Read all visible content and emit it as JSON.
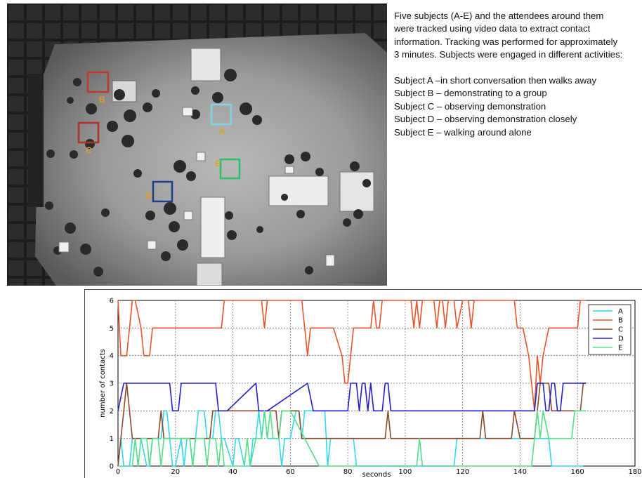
{
  "photo": {
    "boxes": [
      {
        "label": "A",
        "color": "#7fd4e6"
      },
      {
        "label": "B",
        "color": "#c0392b"
      },
      {
        "label": "C",
        "color": "#b0302a"
      },
      {
        "label": "D",
        "color": "#1f3f8f"
      },
      {
        "label": "E",
        "color": "#2ec16a"
      }
    ],
    "label_color": "#e0a020"
  },
  "description": {
    "lines": [
      "Five subjects (A-E) and the attendees around them",
      "were tracked using video data to extract contact",
      "information. Tracking was performed for approximately",
      "3 minutes. Subjects were engaged in different activities:"
    ],
    "subjects": [
      "Subject A –in short conversation then walks away",
      "Subject B – demonstrating to a group",
      "Subject C – observing demonstration",
      "Subject D – observing demonstration closely",
      "Subject E – walking around alone"
    ]
  },
  "chart_data": {
    "type": "line",
    "title": "",
    "xlabel": "seconds",
    "ylabel": "number of contacts",
    "xlim": [
      0,
      180
    ],
    "ylim": [
      0,
      6
    ],
    "xticks": [
      0,
      20,
      40,
      60,
      80,
      100,
      120,
      140,
      160,
      180
    ],
    "yticks": [
      0,
      1,
      2,
      3,
      4,
      5,
      6
    ],
    "grid": true,
    "legend_position": "top-right",
    "series": [
      {
        "name": "A",
        "color": "#33d6f0",
        "x": [
          0,
          1,
          2,
          3,
          4,
          5,
          8,
          10,
          11,
          12,
          15,
          16,
          17,
          18,
          19,
          20,
          22,
          23,
          24,
          25,
          26,
          27,
          28,
          30,
          31,
          33,
          34,
          35,
          36,
          37,
          40,
          41,
          42,
          44,
          46,
          47,
          48,
          49,
          50,
          51,
          52,
          56,
          57,
          58,
          60,
          62,
          63,
          64,
          65,
          66,
          70,
          72,
          73,
          74,
          75,
          80,
          82,
          83,
          87,
          90,
          95,
          100,
          105,
          110,
          115,
          117,
          118,
          120,
          125,
          130,
          135,
          137,
          138,
          140,
          141,
          145,
          147,
          148,
          150,
          151,
          152,
          155,
          160,
          162
        ],
        "y": [
          0,
          1,
          0,
          0,
          0,
          1,
          1,
          0,
          0,
          1,
          1,
          2,
          2,
          1,
          0,
          0,
          1,
          0,
          1,
          1,
          0,
          1,
          2,
          2,
          1,
          1,
          2,
          2,
          1,
          1,
          0,
          1,
          1,
          0,
          0,
          1,
          1,
          2,
          1,
          2,
          1,
          1,
          0,
          1,
          1,
          2,
          2,
          1,
          2,
          2,
          2,
          2,
          0,
          1,
          1,
          1,
          1,
          0,
          0,
          0,
          0,
          0,
          0,
          0,
          0,
          0,
          1,
          1,
          1,
          1,
          1,
          1,
          1,
          1,
          1,
          1,
          1,
          1,
          1,
          0,
          0,
          0,
          0,
          0
        ]
      },
      {
        "name": "B",
        "color": "#e8542a",
        "x": [
          0,
          1,
          2,
          3,
          4,
          5,
          6,
          8,
          9,
          10,
          11,
          12,
          13,
          20,
          30,
          36,
          37,
          40,
          50,
          51,
          52,
          55,
          60,
          61,
          64,
          65,
          66,
          67,
          68,
          70,
          75,
          78,
          79,
          80,
          81,
          82,
          83,
          85,
          88,
          89,
          90,
          91,
          92,
          93,
          95,
          100,
          102,
          103,
          104,
          105,
          106,
          108,
          110,
          111,
          112,
          113,
          114,
          115,
          116,
          117,
          118,
          120,
          122,
          123,
          124,
          125,
          128,
          130,
          135,
          137,
          138,
          139,
          140,
          141,
          143,
          144,
          145,
          146,
          147,
          148,
          150,
          155,
          160,
          161,
          162,
          163
        ],
        "y": [
          6,
          4,
          4,
          4,
          5,
          6,
          6,
          5,
          4,
          4,
          4,
          5,
          5,
          5,
          5,
          5,
          6,
          6,
          6,
          5,
          6,
          6,
          6,
          6,
          6,
          5,
          4,
          5,
          5,
          5,
          5,
          4,
          3,
          3,
          4,
          5,
          5,
          5,
          5,
          6,
          5,
          5,
          6,
          6,
          6,
          6,
          6,
          5,
          6,
          5,
          6,
          6,
          6,
          5,
          6,
          6,
          5,
          6,
          6,
          6,
          5,
          6,
          6,
          5,
          6,
          6,
          6,
          6,
          6,
          6,
          6,
          5,
          5,
          5,
          4,
          3,
          2,
          4,
          3,
          4,
          5,
          5,
          5,
          6,
          6,
          6
        ]
      },
      {
        "name": "C",
        "color": "#8b4a26",
        "x": [
          0,
          1,
          2,
          3,
          4,
          5,
          6,
          10,
          14,
          15,
          16,
          17,
          18,
          20,
          25,
          30,
          32,
          33,
          34,
          36,
          37,
          40,
          45,
          50,
          52,
          55,
          56,
          57,
          58,
          60,
          63,
          64,
          70,
          75,
          80,
          85,
          90,
          93,
          94,
          95,
          100,
          105,
          110,
          115,
          120,
          126,
          127,
          128,
          130,
          135,
          137,
          138,
          140,
          145,
          146,
          147,
          150,
          151,
          155,
          160,
          161,
          162,
          163
        ],
        "y": [
          0,
          1,
          2,
          3,
          2,
          1,
          1,
          1,
          1,
          2,
          1,
          1,
          1,
          1,
          1,
          1,
          1,
          2,
          2,
          2,
          2,
          2,
          2,
          2,
          2,
          2,
          1,
          2,
          2,
          2,
          2,
          1,
          1,
          1,
          1,
          1,
          1,
          1,
          2,
          1,
          1,
          1,
          1,
          1,
          1,
          1,
          2,
          1,
          1,
          1,
          1,
          2,
          1,
          1,
          2,
          3,
          3,
          2,
          2,
          2,
          2,
          3,
          3
        ]
      },
      {
        "name": "D",
        "color": "#2020cc",
        "x": [
          0,
          2,
          10,
          18,
          19,
          20,
          21,
          22,
          34,
          35,
          36,
          38,
          48,
          49,
          50,
          52,
          66,
          68,
          69,
          70,
          75,
          79,
          80,
          81,
          83,
          84,
          85,
          86,
          87,
          88,
          89,
          90,
          92,
          93,
          94,
          95,
          100,
          105,
          110,
          115,
          120,
          130,
          140,
          145,
          146,
          148,
          149,
          150,
          151,
          152,
          153,
          154,
          155,
          156,
          160,
          163
        ],
        "y": [
          2,
          3,
          3,
          3,
          2,
          2,
          2,
          3,
          3,
          2,
          2,
          2,
          3,
          2,
          2,
          2,
          3,
          2,
          2,
          2,
          2,
          2,
          2,
          3,
          3,
          2,
          3,
          3,
          2,
          3,
          2,
          2,
          2,
          3,
          3,
          2,
          2,
          2,
          2,
          2,
          2,
          2,
          2,
          2,
          3,
          3,
          2,
          2,
          3,
          3,
          2,
          2,
          3,
          3,
          3,
          3
        ]
      },
      {
        "name": "E",
        "color": "#55dd88",
        "x": [
          0,
          5,
          6,
          7,
          8,
          10,
          11,
          12,
          14,
          15,
          16,
          20,
          25,
          26,
          27,
          30,
          31,
          32,
          34,
          35,
          36,
          37,
          40,
          44,
          45,
          46,
          48,
          50,
          51,
          52,
          53,
          54,
          56,
          57,
          60,
          70,
          80,
          90,
          100,
          104,
          105,
          106,
          110,
          120,
          130,
          140,
          144,
          145,
          146,
          147,
          148,
          150,
          155,
          158,
          159,
          160,
          163
        ],
        "y": [
          0,
          0,
          1,
          0,
          1,
          1,
          0,
          1,
          1,
          0,
          1,
          1,
          1,
          0,
          1,
          1,
          0,
          1,
          1,
          0,
          1,
          0,
          0,
          0,
          1,
          0,
          1,
          1,
          2,
          1,
          2,
          1,
          1,
          2,
          2,
          0,
          0,
          0,
          0,
          0,
          1,
          0,
          0,
          0,
          0,
          0,
          0,
          1,
          2,
          1,
          2,
          1,
          1,
          1,
          2,
          2,
          2
        ]
      }
    ]
  }
}
